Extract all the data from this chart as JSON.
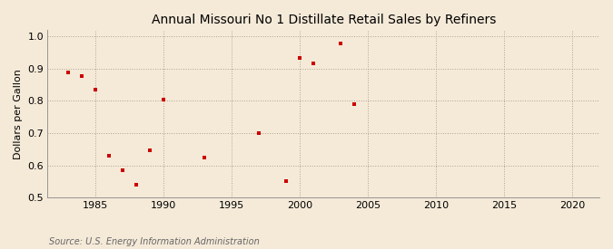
{
  "title": "Annual Missouri No 1 Distillate Retail Sales by Refiners",
  "ylabel": "Dollars per Gallon",
  "source": "Source: U.S. Energy Information Administration",
  "xlim": [
    1981.5,
    2022
  ],
  "ylim": [
    0.5,
    1.02
  ],
  "xticks": [
    1985,
    1990,
    1995,
    2000,
    2005,
    2010,
    2015,
    2020
  ],
  "yticks": [
    0.5,
    0.6,
    0.7,
    0.8,
    0.9,
    1.0
  ],
  "background_color": "#f5ead8",
  "plot_bg_color": "#f5ead8",
  "marker_color": "#cc0000",
  "x": [
    1983,
    1984,
    1985,
    1986,
    1987,
    1988,
    1989,
    1990,
    1993,
    1997,
    1999,
    2000,
    2001,
    2003,
    2004
  ],
  "y": [
    0.888,
    0.876,
    0.835,
    0.63,
    0.585,
    0.54,
    0.648,
    0.805,
    0.623,
    0.7,
    0.552,
    0.932,
    0.916,
    0.978,
    0.789
  ]
}
